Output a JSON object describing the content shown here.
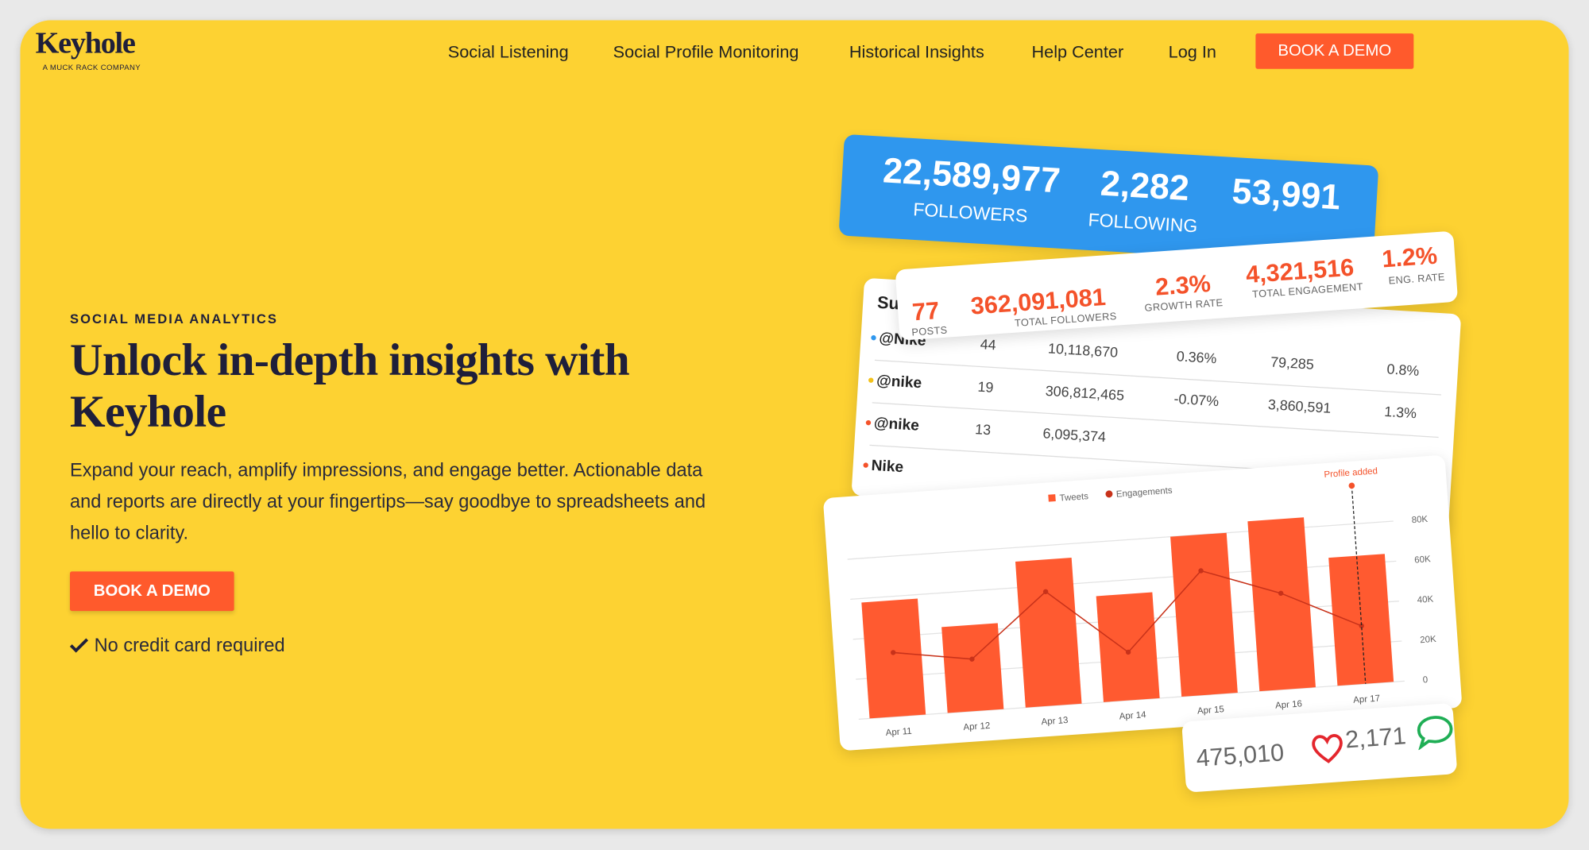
{
  "header": {
    "logo": "Keyhole",
    "logo_tagline": "A MUCK RACK COMPANY",
    "nav": [
      "Social Listening",
      "Social Profile Monitoring",
      "Historical Insights",
      "Help Center",
      "Log In"
    ],
    "cta": "BOOK A DEMO"
  },
  "hero": {
    "eyebrow": "SOCIAL MEDIA ANALYTICS",
    "title": "Unlock in-depth insights with Keyhole",
    "description": "Expand your reach, amplify impressions, and engage better. Actionable data and reports are directly at your fingertips—say goodbye to spreadsheets and hello to clarity.",
    "cta": "BOOK A DEMO",
    "note": "No credit card required"
  },
  "mockup": {
    "profile_stats": [
      {
        "value": "22,589,977",
        "label": "FOLLOWERS"
      },
      {
        "value": "2,282",
        "label": "FOLLOWING"
      },
      {
        "value": "53,991"
      }
    ],
    "summary_stats": [
      {
        "value": "77",
        "label": "POSTS"
      },
      {
        "value": "362,091,081",
        "label": "TOTAL FOLLOWERS"
      },
      {
        "value": "2.3%",
        "label": "GROWTH RATE"
      },
      {
        "value": "4,321,516",
        "label": "TOTAL ENGAGEMENT"
      },
      {
        "value": "1.2%",
        "label": "ENG. RATE"
      }
    ],
    "table": {
      "title": "Summary",
      "rows": [
        [
          "@Nike",
          "44",
          "10,118,670",
          "0.36%",
          "79,285",
          "0.8%"
        ],
        [
          "@nike",
          "19",
          "306,812,465",
          "-0.07%",
          "3,860,591",
          "1.3%"
        ],
        [
          "@nike",
          "13",
          "6,095,374"
        ],
        [
          "Nike"
        ]
      ]
    },
    "chart": {
      "type": "bar",
      "categories": [
        "Apr 11",
        "Apr 12",
        "Apr 13",
        "Apr 14",
        "Apr 15",
        "Apr 16",
        "Apr 17"
      ],
      "series": [
        {
          "name": "Tweets",
          "color": "#ff5a30",
          "values": [
            58000,
            43000,
            73000,
            53000,
            80000,
            85000,
            64000
          ]
        },
        {
          "name": "Engagements",
          "type": "line",
          "color": "#c8321a",
          "values": [
            32000,
            26000,
            57000,
            24000,
            62000,
            48000,
            29000
          ]
        }
      ],
      "ylim": [
        0,
        90000
      ],
      "yticks": [
        0,
        {
          "value": 20000,
          "label": "20K"
        },
        {
          "value": 40000,
          "label": "40K"
        },
        {
          "value": 60000,
          "label": "60K"
        },
        {
          "value": 80000,
          "label": "80K"
        }
      ],
      "grid": true,
      "annotation": "Profile added"
    },
    "engagement": {
      "likes": "475,010",
      "comments": "2,171"
    }
  }
}
